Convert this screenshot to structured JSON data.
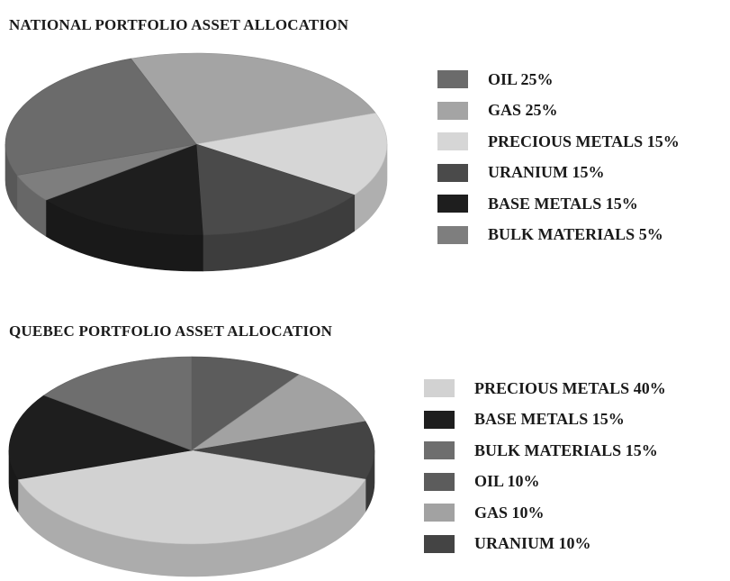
{
  "chart_data": [
    {
      "type": "pie",
      "title": "NATIONAL PORTFOLIO ASSET ALLOCATION",
      "three_d": true,
      "legend_position": "right",
      "slices": [
        {
          "label": "OIL 25%",
          "name": "OIL",
          "value": 25,
          "color": "#6b6b6b"
        },
        {
          "label": "GAS 25%",
          "name": "GAS",
          "value": 25,
          "color": "#a4a4a4"
        },
        {
          "label": "PRECIOUS METALS 15%",
          "name": "PRECIOUS METALS",
          "value": 15,
          "color": "#d6d6d6"
        },
        {
          "label": "URANIUM 15%",
          "name": "URANIUM",
          "value": 15,
          "color": "#4a4a4a"
        },
        {
          "label": "BASE METALS 15%",
          "name": "BASE METALS",
          "value": 15,
          "color": "#1e1e1e"
        },
        {
          "label": "BULK MATERIALS 5%",
          "name": "BULK MATERIALS",
          "value": 5,
          "color": "#7e7e7e"
        }
      ]
    },
    {
      "type": "pie",
      "title": "QUEBEC PORTFOLIO ASSET ALLOCATION",
      "three_d": true,
      "legend_position": "right",
      "slices": [
        {
          "label": "PRECIOUS METALS 40%",
          "name": "PRECIOUS METALS",
          "value": 40,
          "color": "#d2d2d2"
        },
        {
          "label": "BASE METALS 15%",
          "name": "BASE METALS",
          "value": 15,
          "color": "#1e1e1e"
        },
        {
          "label": "BULK MATERIALS 15%",
          "name": "BULK MATERIALS",
          "value": 15,
          "color": "#6e6e6e"
        },
        {
          "label": "OIL 10%",
          "name": "OIL",
          "value": 10,
          "color": "#5c5c5c"
        },
        {
          "label": "GAS 10%",
          "name": "GAS",
          "value": 10,
          "color": "#a2a2a2"
        },
        {
          "label": "URANIUM 10%",
          "name": "URANIUM",
          "value": 10,
          "color": "#444444"
        }
      ]
    }
  ]
}
